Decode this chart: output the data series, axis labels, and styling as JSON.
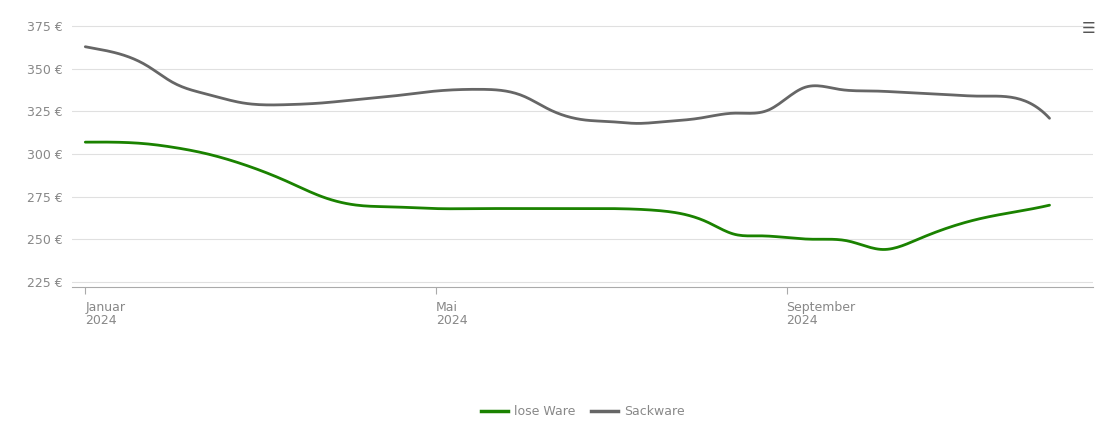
{
  "lose_ware_x": [
    0,
    0.3,
    0.7,
    1.0,
    1.4,
    1.8,
    2.3,
    2.7,
    3.1,
    3.5,
    4.0,
    4.5,
    5.0,
    5.5,
    6.0,
    6.5,
    6.8,
    7.1,
    7.4,
    7.7,
    8.0,
    8.3,
    8.7,
    9.1,
    9.5,
    9.8,
    10.2,
    10.6,
    11.0
  ],
  "lose_ware_y": [
    307,
    307,
    306,
    304,
    300,
    294,
    284,
    275,
    270,
    269,
    268,
    268,
    268,
    268,
    268,
    267,
    265,
    260,
    253,
    252,
    251,
    250,
    249,
    244,
    250,
    256,
    262,
    266,
    270
  ],
  "sackware_x": [
    0,
    0.3,
    0.7,
    1.0,
    1.4,
    1.8,
    2.3,
    2.7,
    3.1,
    3.5,
    4.0,
    4.5,
    5.0,
    5.3,
    5.7,
    6.0,
    6.3,
    6.6,
    7.0,
    7.4,
    7.8,
    8.2,
    8.6,
    9.0,
    9.4,
    9.8,
    10.2,
    10.6,
    11.0
  ],
  "sackware_y": [
    363,
    360,
    352,
    342,
    335,
    330,
    329,
    330,
    332,
    334,
    337,
    338,
    334,
    326,
    320,
    319,
    318,
    319,
    321,
    324,
    326,
    339,
    338,
    337,
    336,
    335,
    334,
    333,
    321
  ],
  "lose_ware_color": "#1a8200",
  "sackware_color": "#666666",
  "background_color": "#ffffff",
  "grid_color": "#e0e0e0",
  "axis_color": "#aaaaaa",
  "tick_color": "#888888",
  "ylim": [
    222,
    383
  ],
  "yticks": [
    225,
    250,
    275,
    300,
    325,
    350,
    375
  ],
  "ytick_labels": [
    "225 €",
    "250 €",
    "275 €",
    "300 €",
    "325 €",
    "350 €",
    "375 €"
  ],
  "xlim": [
    -0.15,
    11.5
  ],
  "xtick_positions": [
    0,
    4.0,
    8.0
  ],
  "xtick_labels_line1": [
    "Januar",
    "Mai",
    "September"
  ],
  "xtick_labels_line2": [
    "2024",
    "2024",
    "2024"
  ],
  "legend_labels": [
    "lose Ware",
    "Sackware"
  ],
  "line_width": 2.0,
  "menu_icon_color": "#555555"
}
